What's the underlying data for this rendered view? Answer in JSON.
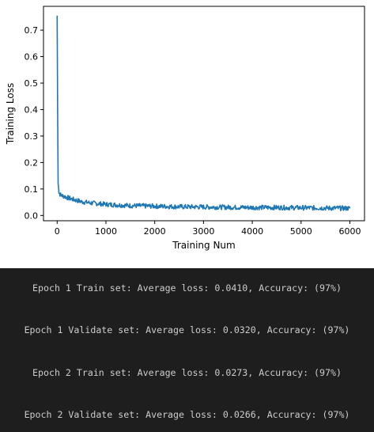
{
  "chart_data": {
    "type": "line",
    "xlabel": "Training Num",
    "ylabel": "Training Loss",
    "xlim": [
      -280,
      6300
    ],
    "ylim": [
      -0.02,
      0.79
    ],
    "xticks": [
      0,
      1000,
      2000,
      3000,
      4000,
      5000,
      6000
    ],
    "yticks": [
      0.0,
      0.1,
      0.2,
      0.3,
      0.4,
      0.5,
      0.6,
      0.7
    ],
    "xtick_labels": [
      "0",
      "1000",
      "2000",
      "3000",
      "4000",
      "5000",
      "6000"
    ],
    "ytick_labels": [
      "0.0",
      "0.1",
      "0.2",
      "0.3",
      "0.4",
      "0.5",
      "0.6",
      "0.7"
    ],
    "grid": false,
    "line_color": "#1f77b4",
    "series": [
      {
        "x": [
          0,
          10,
          20,
          40,
          70,
          100,
          150,
          200,
          300,
          400,
          500,
          700,
          1000,
          1500,
          2000,
          2500,
          3000,
          3500,
          4000,
          4500,
          5000,
          5500,
          6000
        ],
        "values": [
          0.755,
          0.4,
          0.12,
          0.085,
          0.078,
          0.075,
          0.072,
          0.068,
          0.062,
          0.057,
          0.052,
          0.047,
          0.042,
          0.037,
          0.035,
          0.033,
          0.032,
          0.031,
          0.03,
          0.03,
          0.029,
          0.028,
          0.027
        ]
      }
    ]
  },
  "console": {
    "lines": [
      "Epoch 1 Train set: Average loss: 0.0410, Accuracy: (97%)",
      "Epoch 1 Validate set: Average loss: 0.0320, Accuracy: (97%)",
      "Epoch 2 Train set: Average loss: 0.0273, Accuracy: (97%)",
      "Epoch 2 Validate set: Average loss: 0.0266, Accuracy: (97%)"
    ]
  }
}
